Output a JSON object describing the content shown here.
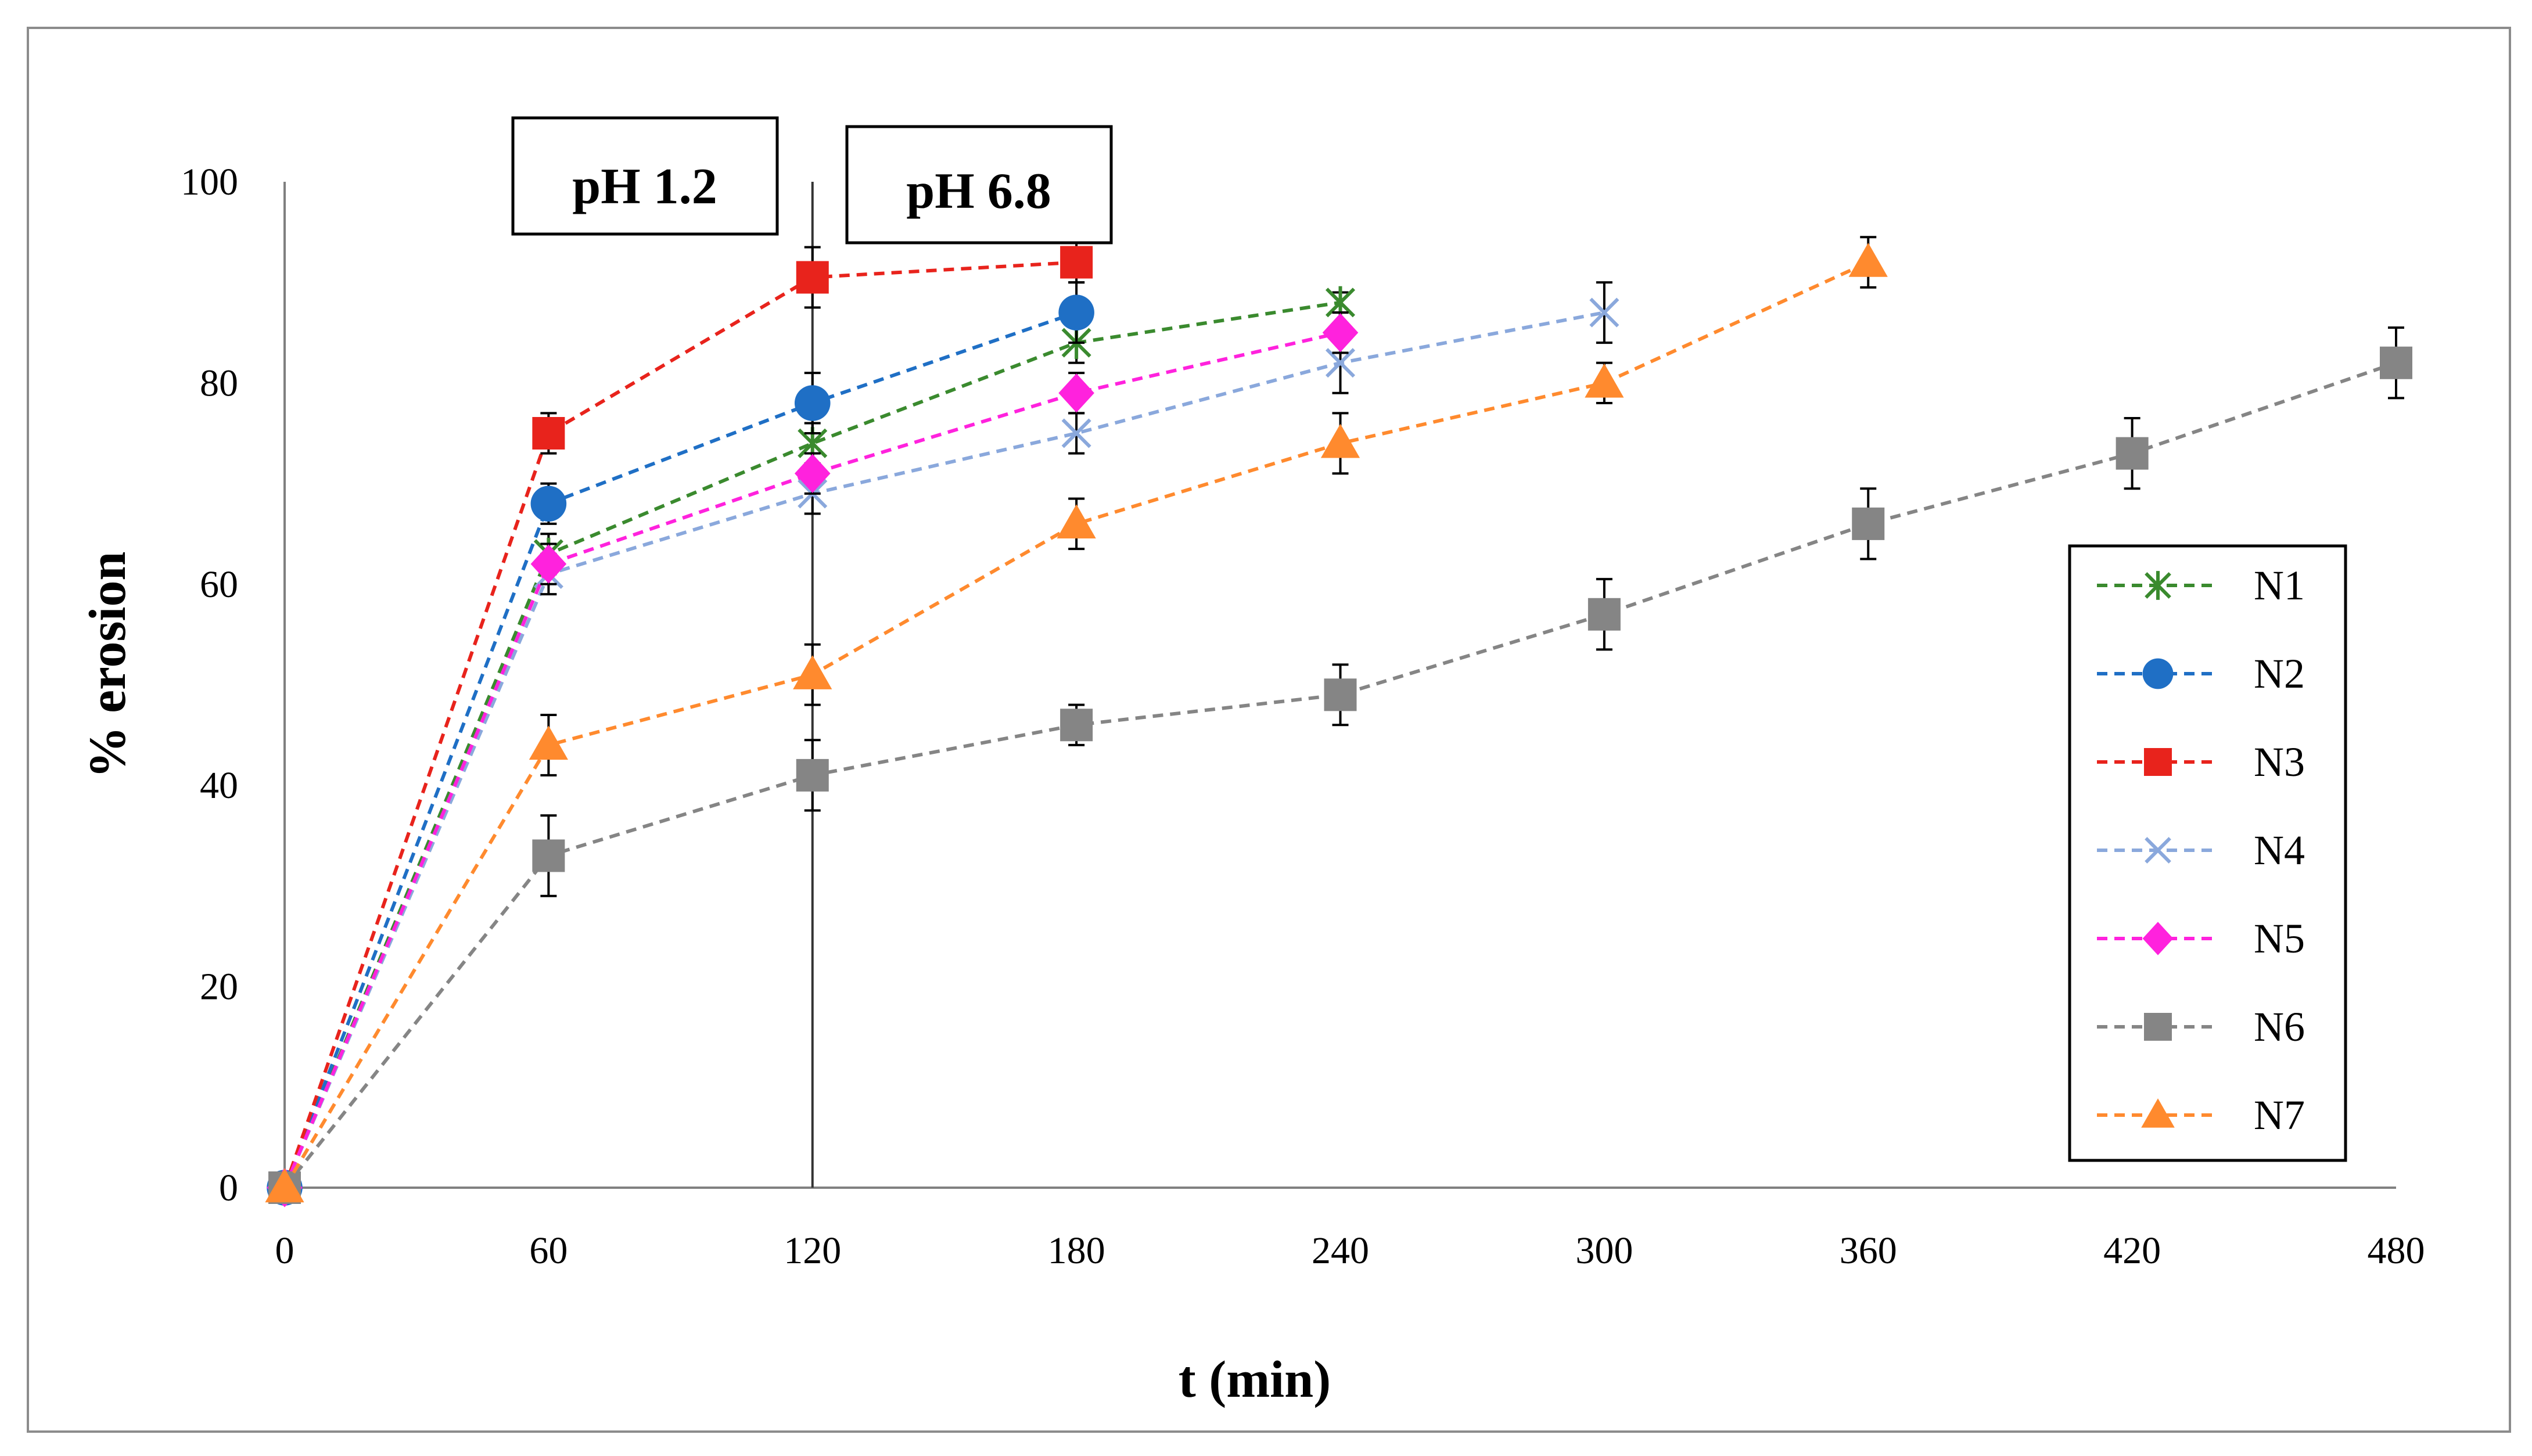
{
  "chart_data": {
    "type": "line",
    "title": "",
    "xlabel": "t (min)",
    "ylabel": "% erosion",
    "xlim": [
      0,
      480
    ],
    "ylim": [
      0,
      100
    ],
    "xticks": [
      0,
      60,
      120,
      180,
      240,
      300,
      360,
      420,
      480
    ],
    "yticks": [
      0,
      20,
      40,
      60,
      80,
      100
    ],
    "grid": false,
    "legend_position": "right",
    "annotations": [
      {
        "text": "pH 1.2",
        "anchor": "left of divider"
      },
      {
        "text": "pH 6.8",
        "anchor": "right of divider"
      }
    ],
    "divider_x": 120,
    "series": [
      {
        "name": "N1",
        "color": "#3A8A2E",
        "marker": "asterisk",
        "x": [
          0,
          60,
          120,
          180,
          240
        ],
        "y": [
          0,
          63,
          74,
          84,
          88
        ],
        "err": [
          0,
          2,
          2,
          2,
          1
        ]
      },
      {
        "name": "N2",
        "color": "#1F6FC5",
        "marker": "circle",
        "x": [
          0,
          60,
          120,
          180
        ],
        "y": [
          0,
          68,
          78,
          87
        ],
        "err": [
          0,
          2,
          3,
          3
        ]
      },
      {
        "name": "N3",
        "color": "#E8231C",
        "marker": "square",
        "x": [
          0,
          60,
          120,
          180
        ],
        "y": [
          0,
          75,
          90.5,
          92
        ],
        "err": [
          0,
          2,
          3,
          2
        ]
      },
      {
        "name": "N4",
        "color": "#8AA8DC",
        "marker": "x",
        "x": [
          0,
          60,
          120,
          180,
          240,
          300
        ],
        "y": [
          0,
          61,
          69,
          75,
          82,
          87
        ],
        "err": [
          0,
          2,
          2,
          2,
          3,
          3
        ]
      },
      {
        "name": "N5",
        "color": "#FF22DD",
        "marker": "diamond",
        "x": [
          0,
          60,
          120,
          180,
          240
        ],
        "y": [
          0,
          62,
          71,
          79,
          85
        ],
        "err": [
          0,
          2,
          2,
          2,
          2
        ]
      },
      {
        "name": "N6",
        "color": "#858585",
        "marker": "square",
        "x": [
          0,
          60,
          120,
          180,
          240,
          300,
          360,
          420,
          480
        ],
        "y": [
          0,
          33,
          41,
          46,
          49,
          57,
          66,
          73,
          82
        ],
        "err": [
          0,
          4,
          3.5,
          2,
          3,
          3.5,
          3.5,
          3.5,
          3.5
        ]
      },
      {
        "name": "N7",
        "color": "#FF8A2E",
        "marker": "triangle",
        "x": [
          0,
          60,
          120,
          180,
          240,
          300,
          360
        ],
        "y": [
          0,
          44,
          51,
          66,
          74,
          80,
          92
        ],
        "err": [
          0,
          3,
          3,
          2.5,
          3,
          2,
          2.5
        ]
      }
    ]
  }
}
